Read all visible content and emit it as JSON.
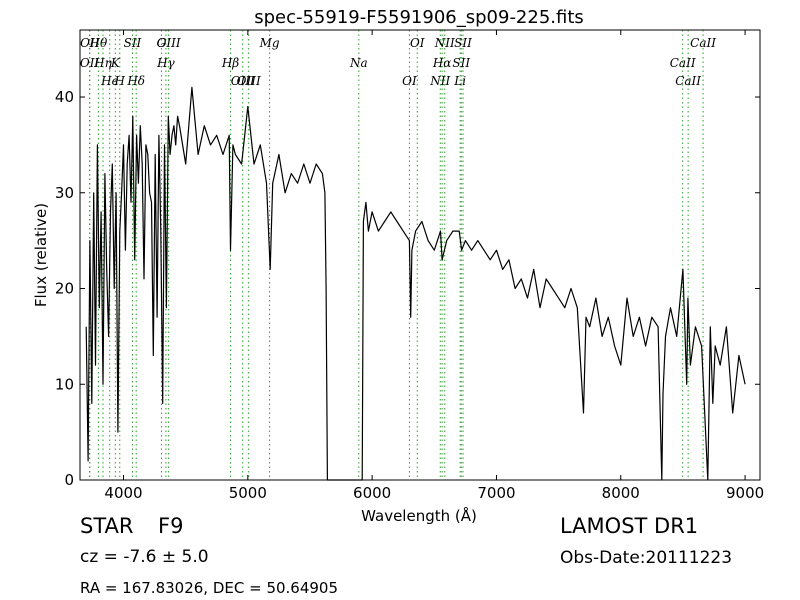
{
  "chart_data": {
    "type": "line",
    "title": "spec-55919-F5591906_sp09-225.fits",
    "xlabel": "Wavelength (Å)",
    "ylabel": "Flux (relative)",
    "xlim": [
      3650,
      9120
    ],
    "ylim": [
      0,
      47
    ],
    "xticks": [
      4000,
      5000,
      6000,
      7000,
      8000,
      9000
    ],
    "yticks": [
      0,
      10,
      20,
      30,
      40
    ],
    "grid": false,
    "line_color": "#000000",
    "marker_color": "#2ca02c",
    "series": [
      {
        "x": [
          3700,
          3715,
          3730,
          3745,
          3760,
          3775,
          3790,
          3805,
          3820,
          3835,
          3850,
          3865,
          3880,
          3895,
          3910,
          3925,
          3940,
          3955,
          3970,
          3985,
          4000,
          4015,
          4030,
          4045,
          4060,
          4075,
          4090,
          4105,
          4120,
          4135,
          4150,
          4165,
          4180,
          4195,
          4210,
          4225,
          4240,
          4255,
          4270,
          4285,
          4300,
          4315,
          4330,
          4345,
          4360,
          4375,
          4390,
          4405,
          4420,
          4435,
          4450,
          4500,
          4550,
          4600,
          4650,
          4700,
          4750,
          4800,
          4850,
          4861,
          4880,
          4900,
          4950,
          5000,
          5050,
          5100,
          5150,
          5180,
          5200,
          5250,
          5300,
          5350,
          5400,
          5450,
          5500,
          5550,
          5600,
          5620,
          5630,
          5640,
          5700,
          5800,
          5900,
          5920,
          5930,
          5950,
          5970,
          6000,
          6050,
          6100,
          6150,
          6200,
          6250,
          6300,
          6310,
          6320,
          6350,
          6400,
          6450,
          6500,
          6550,
          6563,
          6600,
          6650,
          6700,
          6720,
          6750,
          6800,
          6850,
          6900,
          6950,
          7000,
          7050,
          7100,
          7150,
          7200,
          7250,
          7300,
          7350,
          7400,
          7450,
          7500,
          7550,
          7600,
          7650,
          7700,
          7720,
          7750,
          7800,
          7850,
          7900,
          7950,
          8000,
          8050,
          8100,
          8150,
          8200,
          8250,
          8300,
          8330,
          8340,
          8360,
          8400,
          8450,
          8500,
          8530,
          8540,
          8560,
          8600,
          8650,
          8700,
          8720,
          8740,
          8760,
          8800,
          8850,
          8900,
          8950,
          9000
        ],
        "y": [
          16,
          2,
          25,
          8,
          30,
          12,
          35,
          18,
          28,
          10,
          32,
          22,
          15,
          28,
          33,
          20,
          30,
          5,
          26,
          30,
          35,
          24,
          33,
          36,
          29,
          38,
          23,
          36,
          31,
          37,
          33,
          21,
          35,
          34,
          30,
          29,
          13,
          34,
          17,
          36,
          26,
          8,
          35,
          18,
          38,
          34,
          36,
          37,
          35,
          38,
          37,
          33,
          41,
          34,
          37,
          35,
          36,
          34,
          36,
          24,
          35,
          34,
          33,
          39,
          33,
          35,
          31,
          22,
          31,
          34,
          30,
          32,
          31,
          33,
          31,
          33,
          32,
          30,
          20,
          0,
          0,
          0,
          0,
          0,
          27,
          29,
          26,
          28,
          26,
          27,
          28,
          27,
          26,
          25,
          17,
          24,
          26,
          27,
          25,
          24,
          26,
          23,
          25,
          26,
          26,
          24,
          25,
          24,
          25,
          24,
          23,
          24,
          22,
          23,
          20,
          21,
          19,
          22,
          18,
          21,
          20,
          19,
          18,
          20,
          18,
          7,
          17,
          16,
          19,
          15,
          17,
          14,
          12,
          19,
          15,
          17,
          14,
          17,
          16,
          0,
          9,
          15,
          18,
          15,
          22,
          10,
          19,
          12,
          16,
          14,
          0,
          16,
          8,
          14,
          12,
          16,
          7,
          13,
          10
        ]
      }
    ],
    "lines": [
      {
        "label": "Hθ",
        "x": 3798
      },
      {
        "label": "K",
        "x": 3934
      },
      {
        "label": "Hδ",
        "x": 4102
      },
      {
        "label": "OIII",
        "x": 4363
      },
      {
        "label": "OII",
        "x": 3727
      },
      {
        "label": "Hϵ",
        "x": 3889
      },
      {
        "label": "SII",
        "x": 4072
      },
      {
        "label": "Hγ",
        "x": 4341
      },
      {
        "label": "OIII",
        "x": 4959
      },
      {
        "label": "OII",
        "x": 3729
      },
      {
        "label": "Hη",
        "x": 3835
      },
      {
        "label": "H",
        "x": 3970
      },
      {
        "label": "G",
        "x": 4305
      },
      {
        "label": "Hβ",
        "x": 4861
      },
      {
        "label": "OIII",
        "x": 5007
      },
      {
        "label": "Mg",
        "x": 5175
      },
      {
        "label": "Na",
        "x": 5893
      },
      {
        "label": "OI",
        "x": 6300
      },
      {
        "label": "OI",
        "x": 6363
      },
      {
        "label": "Hα",
        "x": 6563
      },
      {
        "label": "NII",
        "x": 6548
      },
      {
        "label": "NII",
        "x": 6584
      },
      {
        "label": "SII",
        "x": 6717
      },
      {
        "label": "Li",
        "x": 6708
      },
      {
        "label": "SII",
        "x": 6731
      },
      {
        "label": "CaII",
        "x": 8498
      },
      {
        "label": "CaII",
        "x": 8542
      },
      {
        "label": "CaII",
        "x": 8662
      }
    ]
  },
  "info": {
    "class_label": "STAR",
    "subclass": "F9",
    "survey": "LAMOST DR1",
    "cz": "cz = -7.6 ± 5.0",
    "obs_date": "Obs-Date:20111223",
    "coords": "RA = 167.83026, DEC = 50.64905"
  }
}
